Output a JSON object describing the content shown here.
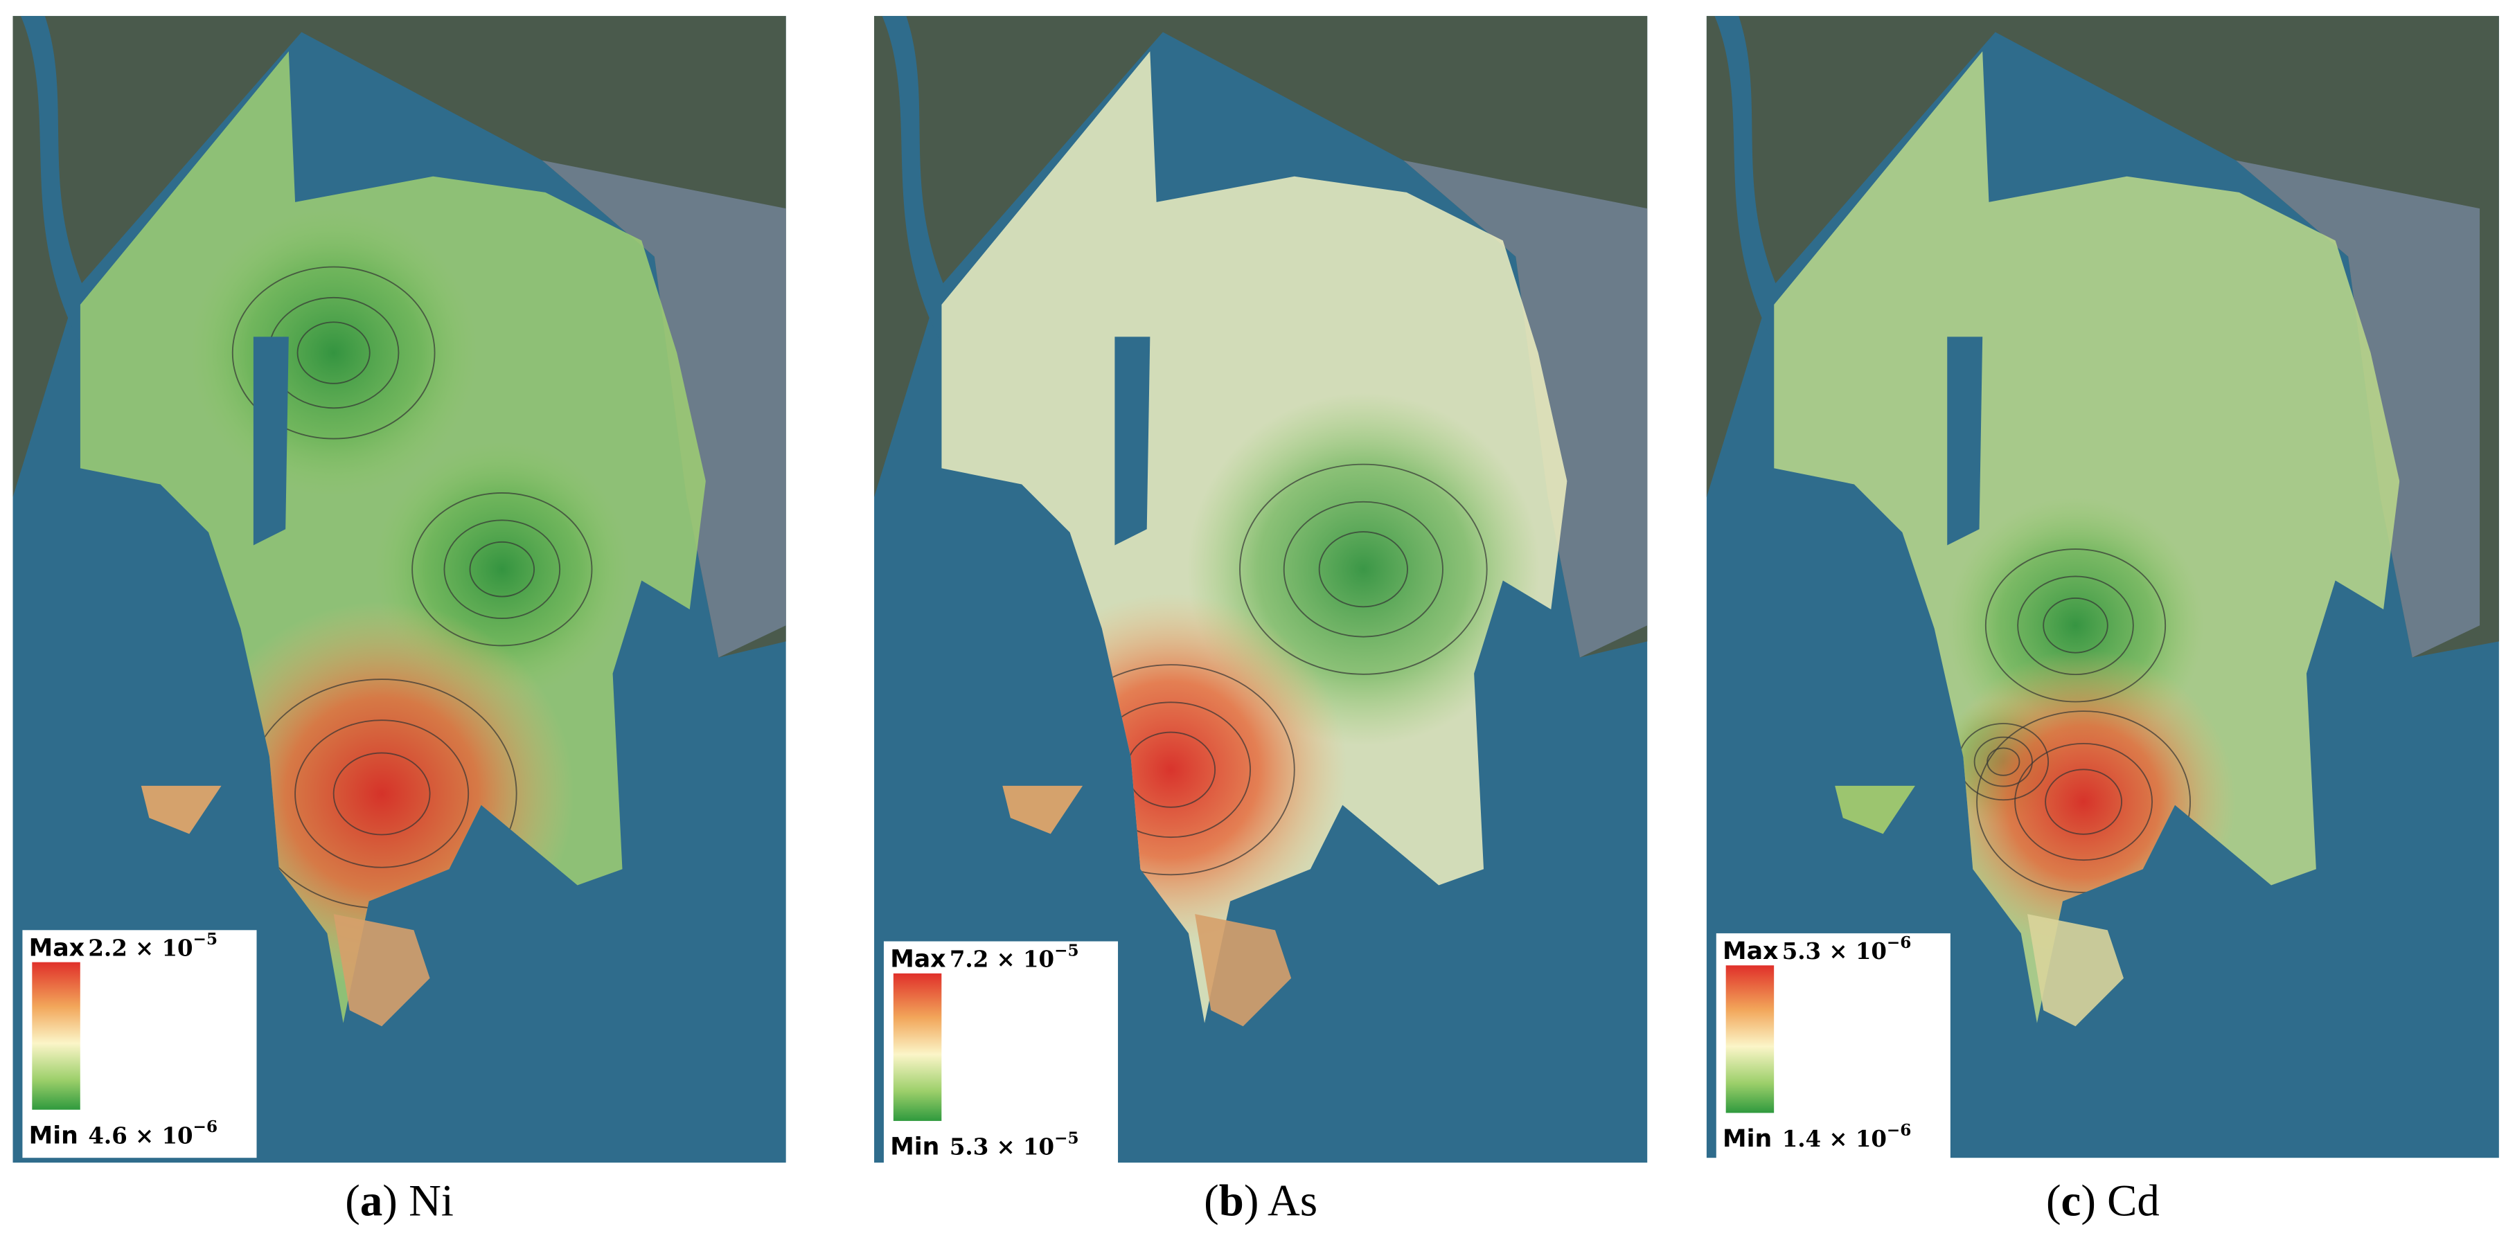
{
  "panels": [
    {
      "caption": {
        "prefix": "(",
        "label": "a",
        "suffix": ") Ni"
      },
      "legend": {
        "max_label": "Max",
        "max_mantissa": "2.2 × 10",
        "max_exponent": "−5",
        "min_label": "Min",
        "min_mantissa": "4.6 × 10",
        "min_exponent": "−6"
      }
    },
    {
      "caption": {
        "prefix": "(",
        "label": "b",
        "suffix": ") As"
      },
      "legend": {
        "max_label": "Max",
        "max_mantissa": "7.2 × 10",
        "max_exponent": "−5",
        "min_label": "Min",
        "min_mantissa": "5.3 × 10",
        "min_exponent": "−5"
      }
    },
    {
      "caption": {
        "prefix": "(",
        "label": "c",
        "suffix": ") Cd"
      },
      "legend": {
        "max_label": "Max",
        "max_mantissa": "5.3 × 10",
        "max_exponent": "−6",
        "min_label": "Min",
        "min_mantissa": "1.4 × 10",
        "min_exponent": "−6"
      }
    }
  ]
}
